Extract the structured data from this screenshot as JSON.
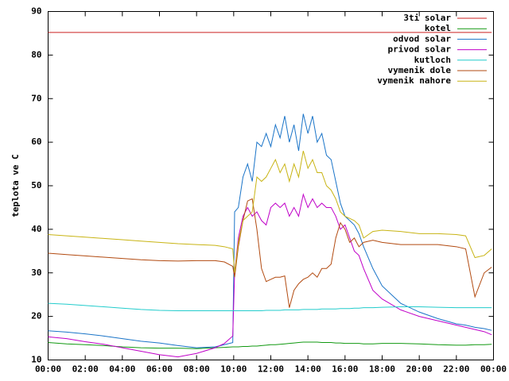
{
  "chart_data": {
    "type": "line",
    "ylabel": "teplota ve C",
    "xlim": [
      0,
      24
    ],
    "xticks": [
      {
        "value": 0,
        "label": "00:00"
      },
      {
        "value": 2,
        "label": "02:00"
      },
      {
        "value": 4,
        "label": "04:00"
      },
      {
        "value": 6,
        "label": "06:00"
      },
      {
        "value": 8,
        "label": "08:00"
      },
      {
        "value": 10,
        "label": "10:00"
      },
      {
        "value": 12,
        "label": "12:00"
      },
      {
        "value": 14,
        "label": "14:00"
      },
      {
        "value": 16,
        "label": "16:00"
      },
      {
        "value": 18,
        "label": "18:00"
      },
      {
        "value": 20,
        "label": "20:00"
      },
      {
        "value": 22,
        "label": "22:00"
      },
      {
        "value": 24,
        "label": "00:00"
      }
    ],
    "ylim": [
      10,
      90
    ],
    "yticks": [
      10,
      20,
      30,
      40,
      50,
      60,
      70,
      80,
      90
    ],
    "grid": false,
    "legend": "top-right",
    "x": [
      0,
      1,
      2,
      3,
      4,
      5,
      6,
      7,
      8,
      9,
      9.5,
      9.95,
      10.05,
      10.25,
      10.5,
      10.75,
      11,
      11.25,
      11.5,
      11.75,
      12,
      12.25,
      12.5,
      12.75,
      13,
      13.25,
      13.5,
      13.75,
      14,
      14.25,
      14.5,
      14.75,
      15,
      15.25,
      15.5,
      15.75,
      16,
      16.25,
      16.5,
      16.75,
      17,
      17.5,
      18,
      19,
      20,
      21,
      22,
      22.5,
      23,
      23.5,
      23.9
    ],
    "series": [
      {
        "name": "3ti solar",
        "color": "#cc2222",
        "values": [
          85.2,
          85.2,
          85.2,
          85.2,
          85.2,
          85.2,
          85.2,
          85.2,
          85.2,
          85.2,
          85.2,
          85.2,
          85.2,
          85.2,
          85.2,
          85.2,
          85.2,
          85.2,
          85.2,
          85.2,
          85.2,
          85.2,
          85.2,
          85.2,
          85.2,
          85.2,
          85.2,
          85.2,
          85.2,
          85.2,
          85.2,
          85.2,
          85.2,
          85.2,
          85.2,
          85.2,
          85.2,
          85.2,
          85.2,
          85.2,
          85.2,
          85.2,
          85.2,
          85.2,
          85.2,
          85.2,
          85.2,
          85.2,
          85.2,
          85.2,
          85.2
        ]
      },
      {
        "name": "kotel",
        "color": "#119911",
        "values": [
          14,
          13.7,
          13.5,
          13.3,
          13,
          12.8,
          12.7,
          12.7,
          12.6,
          12.8,
          12.9,
          13,
          13,
          13,
          13.1,
          13.1,
          13.2,
          13.2,
          13.3,
          13.4,
          13.5,
          13.5,
          13.6,
          13.7,
          13.8,
          13.9,
          14,
          14.1,
          14.1,
          14.1,
          14.1,
          14,
          14,
          14,
          13.9,
          13.9,
          13.8,
          13.8,
          13.8,
          13.8,
          13.7,
          13.7,
          13.8,
          13.8,
          13.7,
          13.5,
          13.4,
          13.4,
          13.5,
          13.5,
          13.6
        ]
      },
      {
        "name": "odvod solar",
        "color": "#1a74c8",
        "values": [
          16.7,
          16.4,
          16,
          15.5,
          14.9,
          14.3,
          13.9,
          13.3,
          12.8,
          13,
          13.5,
          14,
          44,
          45,
          52,
          55,
          51,
          60,
          59,
          62,
          59,
          64,
          61,
          66,
          60,
          64,
          58,
          66.5,
          62,
          66,
          60,
          62,
          57,
          56,
          51,
          46,
          43,
          42,
          41,
          39,
          36,
          31,
          27,
          23,
          21,
          19.5,
          18.3,
          18,
          17.5,
          17.2,
          16.8
        ]
      },
      {
        "name": "privod solar",
        "color": "#c000c8",
        "values": [
          15.3,
          14.9,
          14.2,
          13.6,
          12.8,
          12,
          11.2,
          10.7,
          11.5,
          12.8,
          13.8,
          15.5,
          30,
          38,
          43,
          45,
          43,
          44,
          42,
          41,
          45,
          46,
          45,
          46,
          43,
          45,
          43,
          48,
          45,
          47,
          45,
          46,
          45,
          45,
          43,
          40,
          41,
          38,
          35,
          34,
          31,
          26,
          24,
          21.5,
          20,
          19,
          18,
          17.5,
          17,
          16.5,
          15.8
        ]
      },
      {
        "name": "kutloch",
        "color": "#22cccc",
        "values": [
          23,
          22.8,
          22.5,
          22.2,
          21.9,
          21.6,
          21.4,
          21.3,
          21.3,
          21.3,
          21.3,
          21.3,
          21.3,
          21.3,
          21.3,
          21.3,
          21.3,
          21.3,
          21.3,
          21.4,
          21.4,
          21.4,
          21.4,
          21.5,
          21.5,
          21.5,
          21.5,
          21.6,
          21.6,
          21.6,
          21.6,
          21.7,
          21.7,
          21.7,
          21.7,
          21.8,
          21.8,
          21.8,
          21.9,
          21.9,
          22,
          22,
          22.1,
          22.2,
          22.2,
          22.1,
          22,
          22,
          22,
          22,
          22
        ]
      },
      {
        "name": "vymenik dole",
        "color": "#b24a10",
        "values": [
          34.5,
          34.2,
          33.9,
          33.6,
          33.3,
          33,
          32.8,
          32.7,
          32.8,
          32.8,
          32.5,
          31.5,
          29,
          36,
          42,
          46.5,
          47,
          40,
          31,
          28,
          28.5,
          29,
          29,
          29.3,
          22,
          26,
          27.5,
          28.5,
          29,
          30,
          29,
          31,
          31,
          32,
          38,
          41.5,
          40,
          37,
          38,
          36,
          37,
          37.5,
          37,
          36.5,
          36.5,
          36.5,
          36,
          35.5,
          24.5,
          30,
          31.3
        ]
      },
      {
        "name": "vymenik nahore",
        "color": "#c8b414",
        "values": [
          38.8,
          38.5,
          38.2,
          37.9,
          37.6,
          37.3,
          37,
          36.7,
          36.5,
          36.3,
          36,
          35.5,
          30,
          37,
          42,
          43,
          44,
          52,
          51,
          52,
          54,
          56,
          53,
          55,
          51,
          55,
          52,
          58,
          54,
          56,
          53,
          53,
          50,
          49,
          47,
          44,
          43,
          42.5,
          42,
          41,
          38,
          39.5,
          39.8,
          39.5,
          39,
          39,
          38.8,
          38.5,
          33.5,
          34,
          35.5
        ]
      }
    ]
  }
}
